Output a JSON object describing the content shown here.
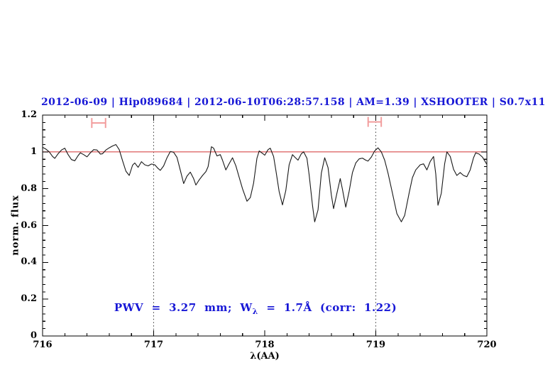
{
  "title": {
    "text": "2012-06-09 | Hip089684 | 2012-06-10T06:28:57.158 | AM=1.39 | XSHOOTER | S0.7x11",
    "color": "#1717d6"
  },
  "annotation": {
    "prefix": "PWV  =  3.27  mm;  W",
    "subscript": "λ",
    "suffix": "  =  1.7Å  (corr:  1.22)",
    "full_text": "PWV = 3.27 mm; W_λ = 1.7Å (corr: 1.22)",
    "color": "#1717d6"
  },
  "chart_data": {
    "type": "line",
    "title": "2012-06-09 | Hip089684 | 2012-06-10T06:28:57.158 | AM=1.39 | XSHOOTER | S0.7x11",
    "xlabel": "λ(AA)",
    "ylabel": "norm. flux",
    "xlim": [
      716,
      720
    ],
    "ylim": [
      0,
      1.2
    ],
    "grid": false,
    "legend": "none",
    "x_ticks": {
      "major": [
        716,
        717,
        718,
        719,
        720
      ],
      "labels": [
        "716",
        "717",
        "718",
        "719",
        "720"
      ],
      "minor_step": 0.2
    },
    "y_ticks": {
      "major": [
        0,
        0.2,
        0.4,
        0.6,
        0.8,
        1,
        1.2
      ],
      "labels": [
        "0",
        "0.2",
        "0.4",
        "0.6",
        "0.8",
        "1",
        "1.2"
      ],
      "minor_step": 0.04
    },
    "reference_lines": {
      "horizontal": [
        {
          "y": 1.0,
          "color": "#d84a4a",
          "style": "solid",
          "name": "continuum-level"
        }
      ],
      "vertical": [
        {
          "x": 717,
          "color": "#3a3a3a",
          "style": "dotted",
          "name": "fit-window-edge"
        },
        {
          "x": 719,
          "color": "#3a3a3a",
          "style": "dotted",
          "name": "fit-window-edge"
        }
      ]
    },
    "range_markers": [
      {
        "x_center": 716.505,
        "half_width": 0.062,
        "y": 1.157,
        "cap_half": 0.027,
        "color": "#f29d9d"
      },
      {
        "x_center": 718.99,
        "half_width": 0.059,
        "y": 1.163,
        "cap_half": 0.027,
        "color": "#f29d9d"
      }
    ],
    "series": [
      {
        "name": "normalized telluric spectrum",
        "color": "#181818",
        "points": [
          [
            716.0,
            1.025
          ],
          [
            716.03,
            1.015
          ],
          [
            716.06,
            1.0
          ],
          [
            716.09,
            0.975
          ],
          [
            716.11,
            0.965
          ],
          [
            716.14,
            0.99
          ],
          [
            716.17,
            1.01
          ],
          [
            716.2,
            1.02
          ],
          [
            716.23,
            0.985
          ],
          [
            716.26,
            0.958
          ],
          [
            716.29,
            0.952
          ],
          [
            716.32,
            0.98
          ],
          [
            716.34,
            0.995
          ],
          [
            716.37,
            0.985
          ],
          [
            716.4,
            0.973
          ],
          [
            716.43,
            0.995
          ],
          [
            716.46,
            1.012
          ],
          [
            716.49,
            1.01
          ],
          [
            716.52,
            0.988
          ],
          [
            716.54,
            0.99
          ],
          [
            716.57,
            1.01
          ],
          [
            716.6,
            1.022
          ],
          [
            716.63,
            1.032
          ],
          [
            716.66,
            1.04
          ],
          [
            716.69,
            1.012
          ],
          [
            716.72,
            0.952
          ],
          [
            716.75,
            0.895
          ],
          [
            716.78,
            0.872
          ],
          [
            716.81,
            0.928
          ],
          [
            716.83,
            0.94
          ],
          [
            716.86,
            0.916
          ],
          [
            716.89,
            0.947
          ],
          [
            716.92,
            0.93
          ],
          [
            716.95,
            0.924
          ],
          [
            716.98,
            0.934
          ],
          [
            717.01,
            0.93
          ],
          [
            717.04,
            0.91
          ],
          [
            717.06,
            0.9
          ],
          [
            717.09,
            0.924
          ],
          [
            717.12,
            0.968
          ],
          [
            717.15,
            1.002
          ],
          [
            717.18,
            0.998
          ],
          [
            717.21,
            0.97
          ],
          [
            717.24,
            0.9
          ],
          [
            717.27,
            0.828
          ],
          [
            717.3,
            0.868
          ],
          [
            717.33,
            0.89
          ],
          [
            717.36,
            0.855
          ],
          [
            717.38,
            0.82
          ],
          [
            717.41,
            0.848
          ],
          [
            717.44,
            0.872
          ],
          [
            717.47,
            0.893
          ],
          [
            717.49,
            0.92
          ],
          [
            717.52,
            1.028
          ],
          [
            717.54,
            1.02
          ],
          [
            717.57,
            0.978
          ],
          [
            717.6,
            0.985
          ],
          [
            717.62,
            0.955
          ],
          [
            717.65,
            0.902
          ],
          [
            717.68,
            0.936
          ],
          [
            717.71,
            0.968
          ],
          [
            717.74,
            0.925
          ],
          [
            717.77,
            0.862
          ],
          [
            717.8,
            0.8
          ],
          [
            717.84,
            0.732
          ],
          [
            717.87,
            0.752
          ],
          [
            717.9,
            0.83
          ],
          [
            717.93,
            0.965
          ],
          [
            717.95,
            1.005
          ],
          [
            717.98,
            0.992
          ],
          [
            718.0,
            0.982
          ],
          [
            718.03,
            1.012
          ],
          [
            718.05,
            1.02
          ],
          [
            718.08,
            0.975
          ],
          [
            718.1,
            0.9
          ],
          [
            718.13,
            0.785
          ],
          [
            718.16,
            0.712
          ],
          [
            718.19,
            0.79
          ],
          [
            718.22,
            0.93
          ],
          [
            718.25,
            0.985
          ],
          [
            718.27,
            0.972
          ],
          [
            718.3,
            0.955
          ],
          [
            718.33,
            0.99
          ],
          [
            718.35,
            1.0
          ],
          [
            718.38,
            0.965
          ],
          [
            718.4,
            0.875
          ],
          [
            718.43,
            0.71
          ],
          [
            718.45,
            0.62
          ],
          [
            718.48,
            0.685
          ],
          [
            718.51,
            0.885
          ],
          [
            718.54,
            0.968
          ],
          [
            718.57,
            0.915
          ],
          [
            718.6,
            0.765
          ],
          [
            718.62,
            0.692
          ],
          [
            718.65,
            0.775
          ],
          [
            718.68,
            0.855
          ],
          [
            718.7,
            0.795
          ],
          [
            718.73,
            0.7
          ],
          [
            718.76,
            0.785
          ],
          [
            718.79,
            0.888
          ],
          [
            718.82,
            0.94
          ],
          [
            718.85,
            0.962
          ],
          [
            718.88,
            0.966
          ],
          [
            718.91,
            0.955
          ],
          [
            718.93,
            0.95
          ],
          [
            718.96,
            0.972
          ],
          [
            718.99,
            1.005
          ],
          [
            719.02,
            1.022
          ],
          [
            719.05,
            1.0
          ],
          [
            719.08,
            0.955
          ],
          [
            719.11,
            0.885
          ],
          [
            719.15,
            0.775
          ],
          [
            719.19,
            0.665
          ],
          [
            719.23,
            0.62
          ],
          [
            719.26,
            0.655
          ],
          [
            719.3,
            0.775
          ],
          [
            719.33,
            0.86
          ],
          [
            719.36,
            0.902
          ],
          [
            719.4,
            0.93
          ],
          [
            719.43,
            0.935
          ],
          [
            719.46,
            0.902
          ],
          [
            719.49,
            0.948
          ],
          [
            719.52,
            0.975
          ],
          [
            719.54,
            0.88
          ],
          [
            719.56,
            0.71
          ],
          [
            719.59,
            0.775
          ],
          [
            719.62,
            0.935
          ],
          [
            719.64,
            1.0
          ],
          [
            719.67,
            0.975
          ],
          [
            719.7,
            0.905
          ],
          [
            719.73,
            0.872
          ],
          [
            719.76,
            0.888
          ],
          [
            719.79,
            0.872
          ],
          [
            719.82,
            0.865
          ],
          [
            719.85,
            0.902
          ],
          [
            719.88,
            0.968
          ],
          [
            719.9,
            0.995
          ],
          [
            719.93,
            0.988
          ],
          [
            719.96,
            0.972
          ],
          [
            719.98,
            0.952
          ],
          [
            720.0,
            0.932
          ]
        ]
      }
    ]
  }
}
